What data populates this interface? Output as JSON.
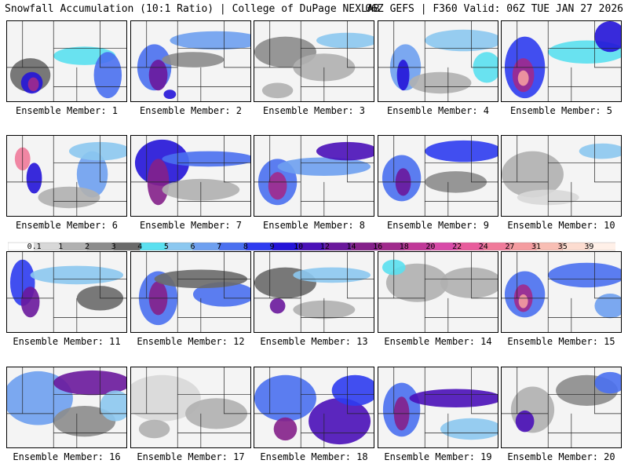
{
  "header": {
    "title": "Snowfall Accumulation (10:1 Ratio) | College of DuPage NEXLAB",
    "run_info": "06Z GEFS | F360 Valid: 06Z TUE JAN 27 2026"
  },
  "colorbar": {
    "ticks": [
      "0.1",
      "1",
      "2",
      "3",
      "4",
      "5",
      "6",
      "7",
      "8",
      "9",
      "10",
      "12",
      "14",
      "16",
      "18",
      "20",
      "22",
      "24",
      "27",
      "31",
      "35",
      "39"
    ],
    "colors": [
      "#ffffff",
      "#d8d8d8",
      "#b0b0b0",
      "#8c8c8c",
      "#6a6a6a",
      "#5ae0f0",
      "#8cc8f0",
      "#6ea0f0",
      "#4a70f0",
      "#2e3cf0",
      "#2414d8",
      "#4a10b8",
      "#6a189c",
      "#84208a",
      "#a02a8c",
      "#c03898",
      "#d84aa8",
      "#e85c9c",
      "#f07a9a",
      "#f49ca0",
      "#f8beb4",
      "#fcdcd0",
      "#fff0e8"
    ]
  },
  "members": [
    {
      "label": "Ensemble Member: 1"
    },
    {
      "label": "Ensemble Member: 2"
    },
    {
      "label": "Ensemble Member: 3"
    },
    {
      "label": "Ensemble Member: 4"
    },
    {
      "label": "Ensemble Member: 5"
    },
    {
      "label": "Ensemble Member: 6"
    },
    {
      "label": "Ensemble Member: 7"
    },
    {
      "label": "Ensemble Member: 8"
    },
    {
      "label": "Ensemble Member: 9"
    },
    {
      "label": "Ensemble Member: 10"
    },
    {
      "label": "Ensemble Member: 11"
    },
    {
      "label": "Ensemble Member: 12"
    },
    {
      "label": "Ensemble Member: 13"
    },
    {
      "label": "Ensemble Member: 14"
    },
    {
      "label": "Ensemble Member: 15"
    },
    {
      "label": "Ensemble Member: 16"
    },
    {
      "label": "Ensemble Member: 17"
    },
    {
      "label": "Ensemble Member: 18"
    },
    {
      "label": "Ensemble Member: 19"
    },
    {
      "label": "Ensemble Member: 20"
    }
  ]
}
